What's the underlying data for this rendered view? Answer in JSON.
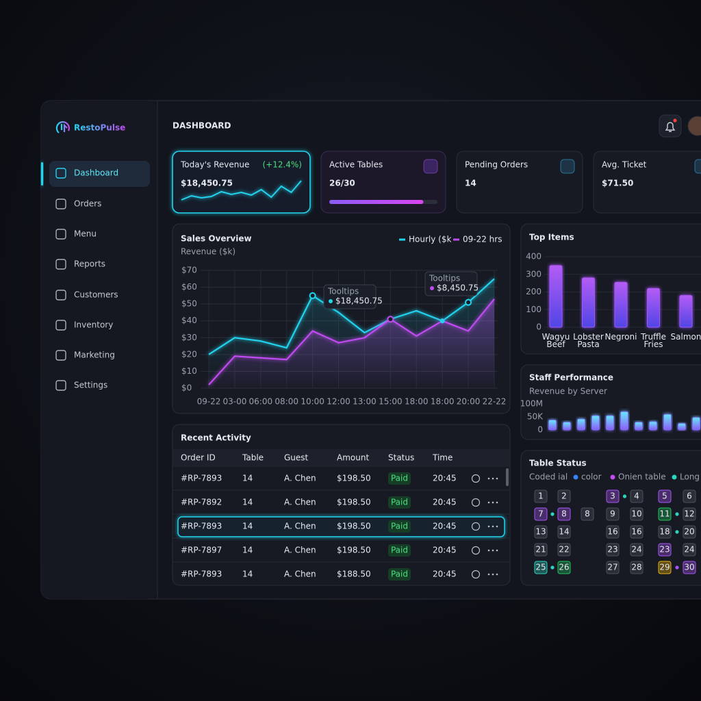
{
  "brand": "RestoPulse",
  "nav": [
    "Dashboard",
    "Orders",
    "Menu",
    "Reports",
    "Customers",
    "Inventory",
    "Marketing",
    "Settings"
  ],
  "header": {
    "title": "DASHBOARD"
  },
  "kpis": [
    {
      "label": "Today's Revenue",
      "value": "$18,450.75",
      "change": "(+12.4%)",
      "sparkline": [
        8,
        14,
        11,
        13,
        20,
        16,
        19,
        15,
        23,
        12,
        28,
        19,
        36
      ]
    },
    {
      "label": "Active Tables",
      "value": "26/30",
      "progress": 87
    },
    {
      "label": "Pending Orders",
      "value": "14"
    },
    {
      "label": "Avg. Ticket",
      "value": "$71.50"
    }
  ],
  "chart_data": [
    {
      "type": "line",
      "title": "Sales Overview",
      "subtitle": "Revenue ($k)",
      "categories": [
        "09-22",
        "03-00",
        "06:00",
        "08:00",
        "10:00",
        "12:00",
        "13:00",
        "15:00",
        "18:00",
        "18:00",
        "20:00",
        "22-22"
      ],
      "series": [
        {
          "name": "Hourly ($k",
          "color": "#22d3ee",
          "values": [
            20,
            30,
            28,
            24,
            55,
            45,
            33,
            41,
            46,
            40,
            51,
            65
          ]
        },
        {
          "name": "09-22 hrs",
          "color": "#c04cf0",
          "values": [
            2,
            19,
            18,
            17,
            34,
            27,
            30,
            41,
            31,
            40,
            34,
            53
          ]
        }
      ],
      "ylim": [
        0,
        70
      ],
      "yticks": [
        {
          "value": 0,
          "label": "$0"
        },
        {
          "value": 10,
          "label": "$10"
        },
        {
          "value": 20,
          "label": "$20"
        },
        {
          "value": 30,
          "label": "$30"
        },
        {
          "value": 40,
          "label": "$40"
        },
        {
          "value": 50,
          "label": "$50"
        },
        {
          "value": 60,
          "label": "$60"
        },
        {
          "value": 70,
          "label": "$70"
        }
      ],
      "grid": true,
      "annotations": [
        {
          "title": "Tooltips",
          "text": "$18,450.75"
        },
        {
          "title": "Tooltips",
          "text": "$8,450.75"
        }
      ]
    },
    {
      "type": "bar",
      "title": "Top Items",
      "categories": [
        "Wagyu Beef",
        "Lobster Pasta",
        "Negroni",
        "Truffle Fries",
        "Salmon"
      ],
      "values": [
        350,
        280,
        255,
        220,
        180
      ],
      "color": "#a855f7",
      "ylim": [
        0,
        400
      ],
      "yticks": [
        0,
        100,
        200,
        300,
        400
      ],
      "grid": true
    },
    {
      "type": "bar",
      "title": "Staff Performance",
      "subtitle": "Revenue by Server",
      "categories": [
        null,
        null,
        null,
        null,
        null,
        null,
        null,
        null,
        null,
        null,
        null
      ],
      "values": [
        38,
        30,
        42,
        55,
        55,
        70,
        30,
        32,
        60,
        25,
        48
      ],
      "color": "#7c6cf5",
      "ylim": [
        0,
        100
      ],
      "yticks": [
        0,
        {
          "value": 50,
          "label": "50K"
        },
        {
          "value": 100,
          "label": "100M"
        }
      ],
      "grid": false
    }
  ],
  "recent_activity": {
    "title": "Recent Activity",
    "columns": [
      "Order ID",
      "Table",
      "Guest",
      "Amount",
      "Status",
      "Time"
    ],
    "rows": [
      [
        "#RP-7893",
        "14",
        "A. Chen",
        "$198.50",
        "Paid",
        "20:45"
      ],
      [
        "#RP-7892",
        "14",
        "A. Chen",
        "$198.50",
        "Paid",
        "20:45"
      ],
      [
        "#RP-7893",
        "14",
        "A. Chen",
        "$198.50",
        "Paid",
        "20:45"
      ],
      [
        "#RP-7897",
        "14",
        "A. Chen",
        "$198.50",
        "Paid",
        "20:45"
      ],
      [
        "#RP-7893",
        "14",
        "A. Chen",
        "$188.50",
        "Paid",
        "20:45"
      ]
    ]
  },
  "table_status": {
    "title": "Table Status",
    "legend": [
      {
        "label": "Coded ial"
      },
      {
        "label": "color",
        "color": "#3b82f6"
      },
      {
        "label": "Onien table",
        "color": "#c04cf0"
      },
      {
        "label": "Long u",
        "color": "#2dd4bf"
      }
    ],
    "rows": [
      [
        {
          "label": "1"
        },
        {
          "label": "2"
        },
        null,
        {
          "label": "3",
          "color": "#a855f7",
          "dot": "#2dd4bf"
        },
        {
          "label": "4"
        },
        {
          "label": "5",
          "color": "#a855f7"
        },
        {
          "label": "6"
        }
      ],
      [
        {
          "label": "7",
          "color": "#a855f7",
          "dot": "#2dd4bf"
        },
        {
          "label": "8",
          "color": "#a855f7"
        },
        {
          "label": "8"
        },
        {
          "label": "9"
        },
        {
          "label": "10"
        },
        {
          "label": "11",
          "color": "#22c55e",
          "dot": "#2dd4bf"
        },
        {
          "label": "12"
        }
      ],
      [
        {
          "label": "13"
        },
        {
          "label": "14"
        },
        null,
        {
          "label": "16"
        },
        {
          "label": "16"
        },
        {
          "label": "18",
          "dot": "#2dd4bf"
        },
        {
          "label": "20"
        }
      ],
      [
        {
          "label": "21"
        },
        {
          "label": "22"
        },
        null,
        {
          "label": "23"
        },
        {
          "label": "24"
        },
        {
          "label": "23",
          "color": "#a855f7"
        },
        {
          "label": "24"
        }
      ],
      [
        {
          "label": "25",
          "color": "#2dd4bf",
          "dot": "#2dd4bf"
        },
        {
          "label": "26",
          "color": "#22c55e"
        },
        null,
        {
          "label": "27"
        },
        {
          "label": "28"
        },
        {
          "label": "29",
          "color": "#eab308",
          "dot": "#a855f7"
        },
        {
          "label": "30",
          "color": "#a855f7"
        }
      ]
    ]
  }
}
